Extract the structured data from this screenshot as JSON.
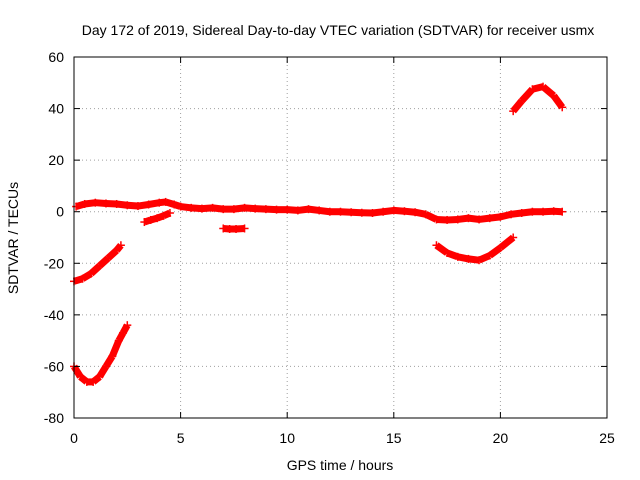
{
  "chart_data": {
    "type": "scatter",
    "title": "Day 172 of 2019, Sidereal Day-to-day VTEC variation (SDTVAR) for receiver usmx",
    "xlabel": "GPS time / hours",
    "ylabel": "SDTVAR / TECUs",
    "xlim": [
      0,
      25
    ],
    "ylim": [
      -80,
      60
    ],
    "xticks": [
      0,
      5,
      10,
      15,
      20,
      25
    ],
    "yticks": [
      -80,
      -60,
      -40,
      -20,
      0,
      20,
      40,
      60
    ],
    "grid": true,
    "marker": "plus",
    "series_color": "#ff0000",
    "series": [
      {
        "name": "main track",
        "x": [
          0.1,
          0.5,
          1.0,
          1.5,
          2.0,
          2.5,
          3.0,
          3.5,
          4.0,
          4.3,
          4.7,
          5.0,
          5.5,
          6.0,
          6.5,
          7.0,
          7.5,
          8.0,
          8.5,
          9.0,
          9.5,
          10.0,
          10.5,
          11.0,
          11.5,
          12.0,
          12.5,
          13.0,
          13.5,
          14.0,
          14.5,
          15.0,
          15.5,
          16.0,
          16.5,
          17.0,
          17.5,
          18.0,
          18.5,
          19.0,
          19.5,
          20.0,
          20.5,
          21.0,
          21.5,
          22.0,
          22.5,
          22.9
        ],
        "y": [
          2,
          3,
          3.5,
          3.2,
          3,
          2.5,
          2.2,
          2.8,
          3.5,
          3.8,
          2.8,
          2,
          1.5,
          1.2,
          1.5,
          1,
          1,
          1.5,
          1.2,
          1,
          0.8,
          0.8,
          0.5,
          1,
          0.5,
          0,
          0,
          -0.2,
          -0.4,
          -0.5,
          0,
          0.5,
          0.2,
          -0.2,
          -1,
          -3,
          -3.2,
          -3,
          -2.5,
          -3,
          -2.5,
          -2,
          -1,
          -0.5,
          0,
          0,
          0.2,
          0
        ]
      },
      {
        "name": "arc 1",
        "x": [
          0,
          0.4,
          0.8,
          1.2,
          1.6,
          2.0,
          2.2
        ],
        "y": [
          -27,
          -26,
          -24,
          -21,
          -18,
          -15,
          -13
        ]
      },
      {
        "name": "arc 2",
        "x": [
          0,
          0.3,
          0.6,
          0.9,
          1.2,
          1.5,
          1.8,
          2.1,
          2.3,
          2.5
        ],
        "y": [
          -60,
          -64,
          -66,
          -66,
          -64,
          -60,
          -56,
          -50,
          -47,
          -44
        ]
      },
      {
        "name": "arc 3",
        "x": [
          3.3,
          3.6,
          3.9,
          4.2,
          4.5
        ],
        "y": [
          -4,
          -3.2,
          -2.5,
          -1.6,
          -0.5
        ]
      },
      {
        "name": "arc 4",
        "x": [
          7.0,
          7.3,
          7.6,
          8.0
        ],
        "y": [
          -6.5,
          -6.7,
          -6.7,
          -6.5
        ]
      },
      {
        "name": "arc 5",
        "x": [
          17.0,
          17.5,
          18.0,
          18.5,
          19.0,
          19.5,
          20.0,
          20.6
        ],
        "y": [
          -13,
          -16,
          -17.5,
          -18.3,
          -18.8,
          -17,
          -14,
          -10
        ]
      },
      {
        "name": "arc 6",
        "x": [
          20.6,
          21.0,
          21.5,
          22.0,
          22.5,
          22.9
        ],
        "y": [
          39,
          43,
          47.5,
          48.5,
          45,
          40.5
        ]
      }
    ]
  }
}
